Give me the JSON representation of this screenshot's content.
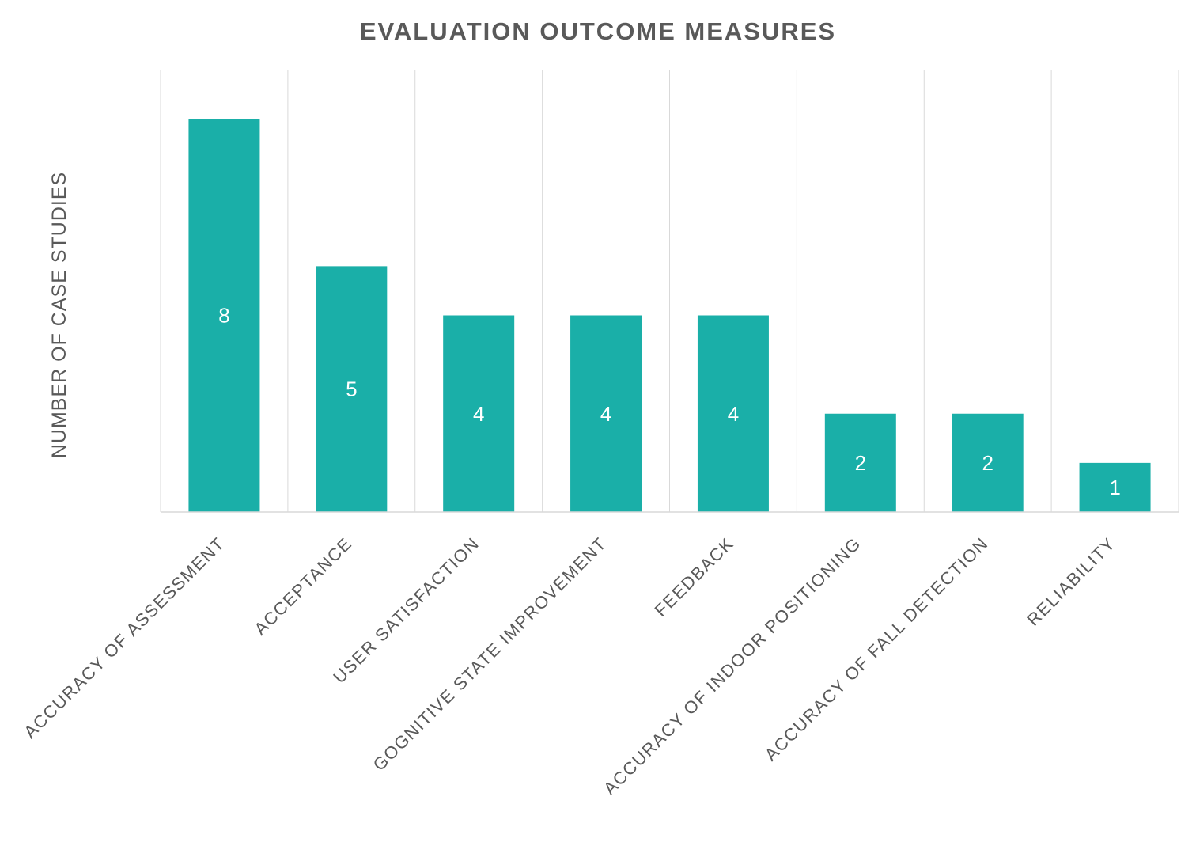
{
  "chart_data": {
    "type": "bar",
    "title": "EVALUATION OUTCOME MEASURES",
    "xlabel": "",
    "ylabel": "NUMBER OF CASE STUDIES",
    "categories": [
      "ACCURACY OF ASSESSMENT",
      "ACCEPTANCE",
      "USER SATISFACTION",
      "GOGNITIVE STATE IMPROVEMENT",
      "FEEDBACK",
      "ACCURACY OF INDOOR POSITIONING",
      "ACCURACY OF FALL DETECTION",
      "RELIABILITY"
    ],
    "values": [
      8,
      5,
      4,
      4,
      4,
      2,
      2,
      1
    ],
    "ylim": [
      0,
      9
    ],
    "grid": "vertical category dividers",
    "legend": "none",
    "bar_color": "#1aafa8",
    "data_labels": "inside-center"
  }
}
